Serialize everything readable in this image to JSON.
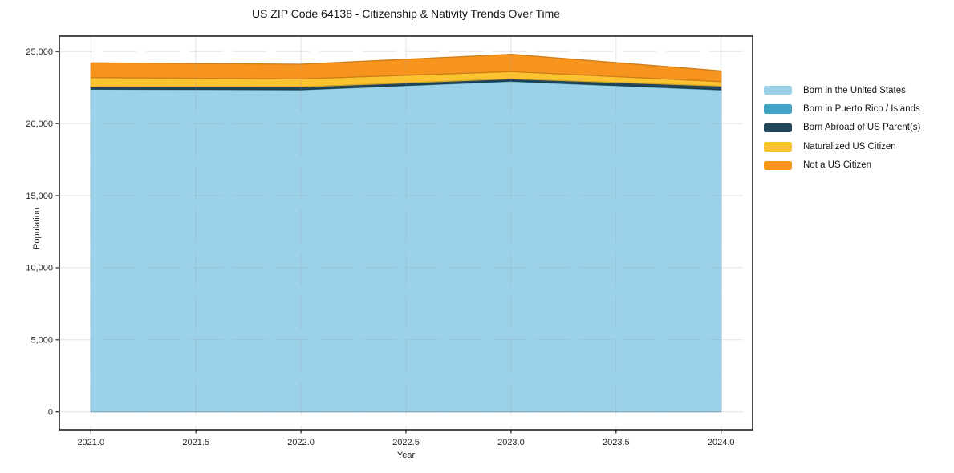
{
  "chart_data": {
    "type": "area",
    "stacked": true,
    "title": "US ZIP Code 64138 - Citizenship & Nativity Trends Over Time",
    "xlabel": "Year",
    "ylabel": "Population",
    "x": [
      2021,
      2022,
      2023,
      2024
    ],
    "series": [
      {
        "name": "Born in the United States",
        "color": "#9cd2e9",
        "values": [
          22380,
          22340,
          22930,
          22330
        ]
      },
      {
        "name": "Born in Puerto Rico / Islands",
        "color": "#43a5c5",
        "values": [
          20,
          20,
          30,
          30
        ]
      },
      {
        "name": "Born Abroad of US Parent(s)",
        "color": "#22465a",
        "values": [
          150,
          190,
          150,
          245
        ]
      },
      {
        "name": "Naturalized US Citizen",
        "color": "#fcc330",
        "values": [
          645,
          555,
          500,
          310
        ]
      },
      {
        "name": "Not a US Citizen",
        "color": "#f7941e",
        "values": [
          1025,
          1020,
          1200,
          745
        ]
      }
    ],
    "totals": [
      24220,
      24125,
      24810,
      23660
    ],
    "xticks": {
      "values": [
        2021.0,
        2021.5,
        2022.0,
        2022.5,
        2023.0,
        2023.5,
        2024.0
      ],
      "labels": [
        "2021.0",
        "2021.5",
        "2022.0",
        "2022.5",
        "2023.0",
        "2023.5",
        "2024.0"
      ]
    },
    "yticks": {
      "values": [
        0,
        5000,
        10000,
        15000,
        20000,
        25000
      ],
      "labels": [
        "0",
        "5,000",
        "10,000",
        "15,000",
        "20,000",
        "25,000"
      ]
    },
    "xlim": [
      2020.85,
      2024.15
    ],
    "ylim": [
      -1241,
      26072
    ],
    "grid": true,
    "legend_position": "outside-right-top"
  }
}
